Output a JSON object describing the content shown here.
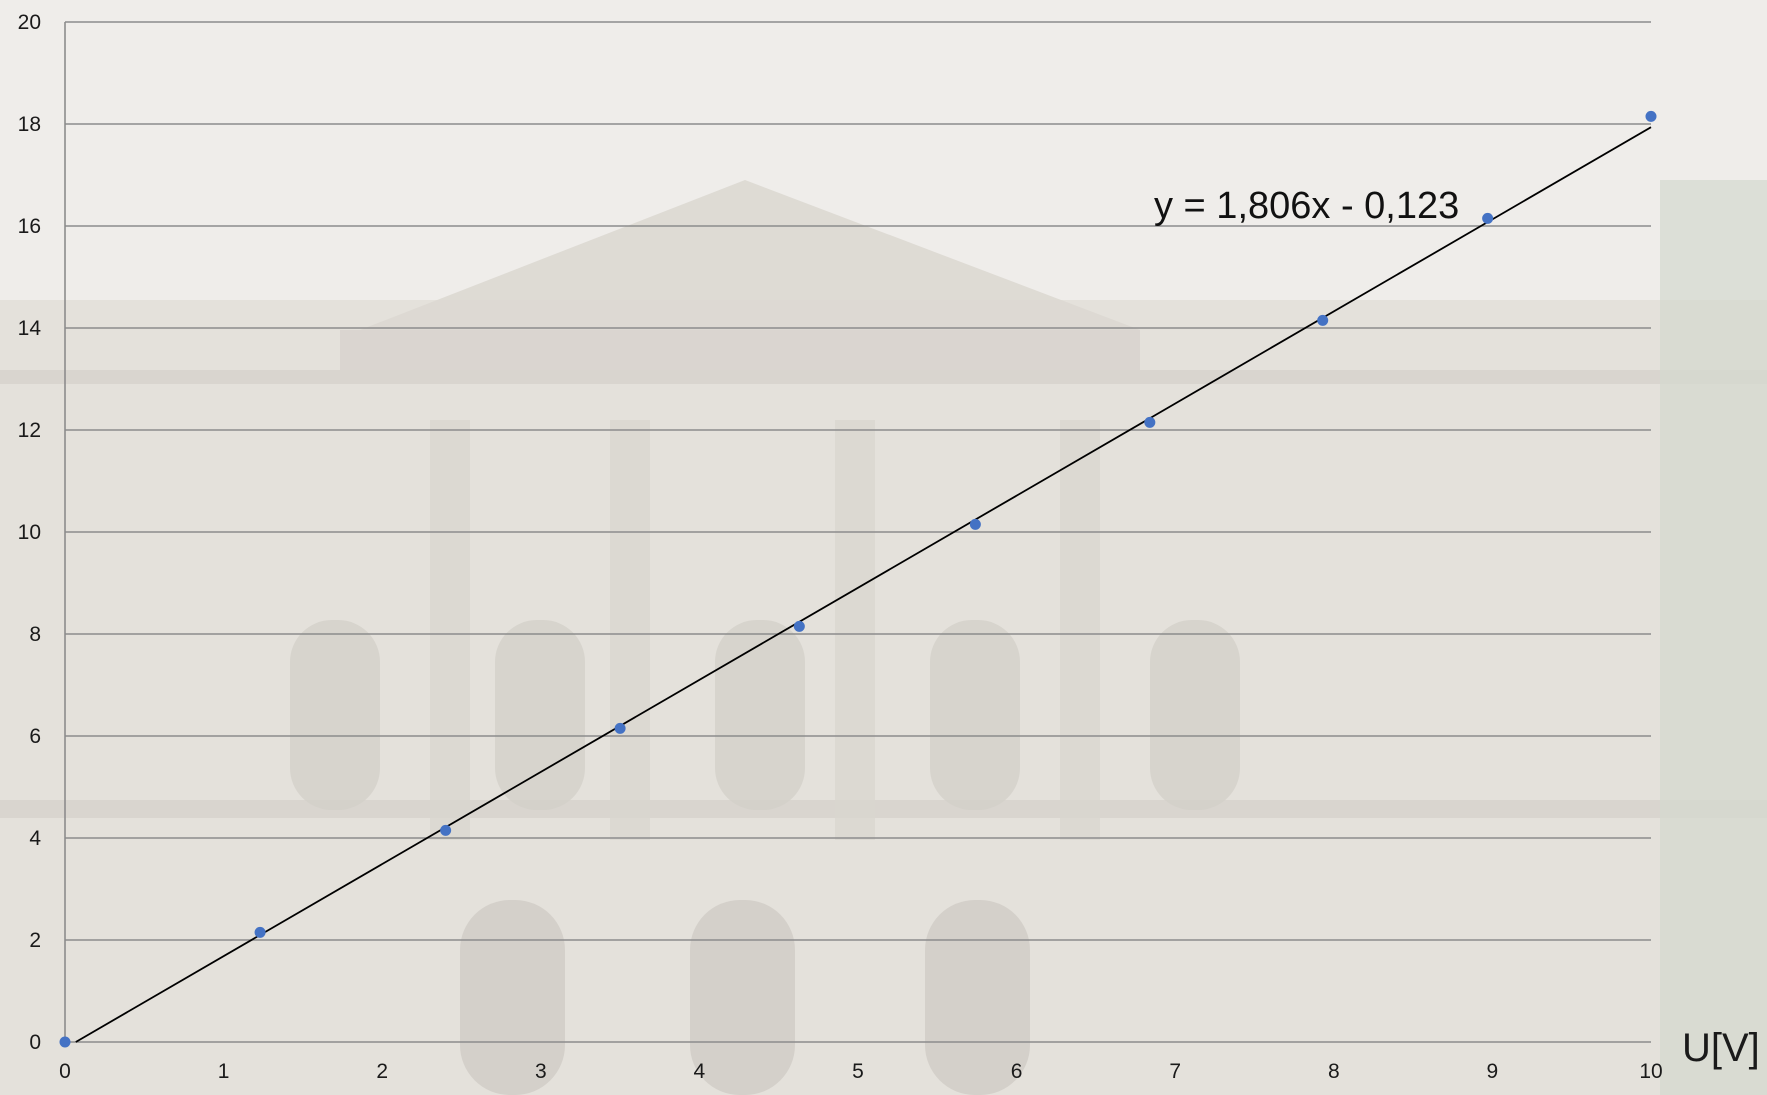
{
  "chart_data": {
    "type": "scatter",
    "title": "",
    "xlabel": "U[V]",
    "ylabel": "",
    "xlim": [
      0,
      10
    ],
    "ylim": [
      0,
      20
    ],
    "xticks": [
      0,
      1,
      2,
      3,
      4,
      5,
      6,
      7,
      8,
      9,
      10
    ],
    "yticks": [
      0,
      2,
      4,
      6,
      8,
      10,
      12,
      14,
      16,
      18,
      20
    ],
    "grid": "horizontal",
    "legend": "none",
    "series": [
      {
        "x": [
          0,
          1.23,
          2.4,
          3.5,
          4.63,
          5.74,
          6.84,
          7.93,
          8.97,
          10
        ],
        "y": [
          0,
          2.15,
          4.15,
          6.15,
          8.15,
          10.15,
          12.15,
          14.15,
          16.15,
          18.15
        ],
        "color": "#4472c4"
      }
    ],
    "trendline": {
      "type": "linear",
      "slope": 1.806,
      "intercept": -0.123,
      "equation_label": "y = 1,806x - 0,123",
      "color": "#000000"
    },
    "background": "faded photograph of a building facade"
  }
}
